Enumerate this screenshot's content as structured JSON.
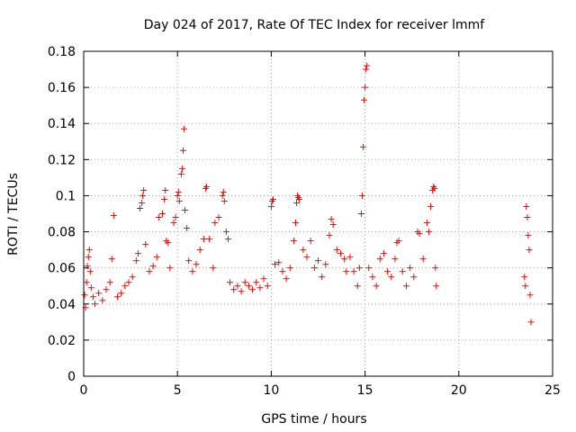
{
  "chart_data": {
    "type": "scatter",
    "title": "Day 024 of 2017, Rate Of TEC Index for receiver lmmf",
    "xlabel": "GPS time / hours",
    "ylabel": "ROTI / TECUs",
    "xlim": [
      0,
      25
    ],
    "ylim": [
      0,
      0.18
    ],
    "xticks": [
      "0",
      "5",
      "10",
      "15",
      "20",
      "25"
    ],
    "yticks": [
      "0",
      "0.02",
      "0.04",
      "0.06",
      "0.08",
      "0.1",
      "0.12",
      "0.14",
      "0.16",
      "0.18"
    ],
    "grid": true,
    "marker": "+",
    "marker_color": "#ff0000",
    "series": [
      {
        "points": [
          [
            0.05,
            0.045
          ],
          [
            0.1,
            0.038
          ],
          [
            0.15,
            0.052
          ],
          [
            0.2,
            0.061
          ],
          [
            0.25,
            0.066
          ],
          [
            0.3,
            0.07
          ],
          [
            0.35,
            0.058
          ],
          [
            0.4,
            0.049
          ],
          [
            0.5,
            0.044
          ],
          [
            0.6,
            0.04
          ],
          [
            0.8,
            0.046
          ],
          [
            1.0,
            0.042
          ],
          [
            1.2,
            0.048
          ],
          [
            1.4,
            0.052
          ],
          [
            1.5,
            0.065
          ],
          [
            1.6,
            0.089
          ],
          [
            1.8,
            0.044
          ],
          [
            2.0,
            0.046
          ],
          [
            2.2,
            0.05
          ],
          [
            2.4,
            0.052
          ],
          [
            2.6,
            0.055
          ],
          [
            2.8,
            0.064
          ],
          [
            2.9,
            0.068
          ],
          [
            3.0,
            0.093
          ],
          [
            3.1,
            0.096
          ],
          [
            3.15,
            0.1
          ],
          [
            3.2,
            0.103
          ],
          [
            3.3,
            0.073
          ],
          [
            3.5,
            0.058
          ],
          [
            3.7,
            0.061
          ],
          [
            3.9,
            0.066
          ],
          [
            4.0,
            0.088
          ],
          [
            4.2,
            0.09
          ],
          [
            4.3,
            0.098
          ],
          [
            4.35,
            0.103
          ],
          [
            4.4,
            0.075
          ],
          [
            4.5,
            0.074
          ],
          [
            4.6,
            0.06
          ],
          [
            4.8,
            0.085
          ],
          [
            4.9,
            0.088
          ],
          [
            5.0,
            0.1
          ],
          [
            5.05,
            0.102
          ],
          [
            5.1,
            0.097
          ],
          [
            5.2,
            0.112
          ],
          [
            5.25,
            0.115
          ],
          [
            5.3,
            0.125
          ],
          [
            5.35,
            0.137
          ],
          [
            5.4,
            0.092
          ],
          [
            5.5,
            0.082
          ],
          [
            5.6,
            0.064
          ],
          [
            5.8,
            0.058
          ],
          [
            6.0,
            0.062
          ],
          [
            6.2,
            0.07
          ],
          [
            6.4,
            0.076
          ],
          [
            6.5,
            0.104
          ],
          [
            6.55,
            0.105
          ],
          [
            6.7,
            0.076
          ],
          [
            6.9,
            0.06
          ],
          [
            7.0,
            0.085
          ],
          [
            7.2,
            0.088
          ],
          [
            7.4,
            0.1
          ],
          [
            7.45,
            0.102
          ],
          [
            7.5,
            0.097
          ],
          [
            7.6,
            0.08
          ],
          [
            7.7,
            0.076
          ],
          [
            7.8,
            0.052
          ],
          [
            8.0,
            0.048
          ],
          [
            8.2,
            0.05
          ],
          [
            8.4,
            0.047
          ],
          [
            8.6,
            0.052
          ],
          [
            8.8,
            0.05
          ],
          [
            9.0,
            0.048
          ],
          [
            9.2,
            0.052
          ],
          [
            9.4,
            0.049
          ],
          [
            9.6,
            0.054
          ],
          [
            9.8,
            0.05
          ],
          [
            10.0,
            0.094
          ],
          [
            10.05,
            0.097
          ],
          [
            10.1,
            0.098
          ],
          [
            10.2,
            0.062
          ],
          [
            10.4,
            0.063
          ],
          [
            10.6,
            0.058
          ],
          [
            10.8,
            0.054
          ],
          [
            11.0,
            0.06
          ],
          [
            11.2,
            0.075
          ],
          [
            11.3,
            0.085
          ],
          [
            11.35,
            0.096
          ],
          [
            11.4,
            0.1
          ],
          [
            11.45,
            0.099
          ],
          [
            11.5,
            0.098
          ],
          [
            11.7,
            0.07
          ],
          [
            11.9,
            0.066
          ],
          [
            12.1,
            0.075
          ],
          [
            12.3,
            0.06
          ],
          [
            12.5,
            0.064
          ],
          [
            12.7,
            0.055
          ],
          [
            12.9,
            0.062
          ],
          [
            13.1,
            0.078
          ],
          [
            13.2,
            0.087
          ],
          [
            13.3,
            0.084
          ],
          [
            13.5,
            0.07
          ],
          [
            13.7,
            0.068
          ],
          [
            13.9,
            0.065
          ],
          [
            14.0,
            0.058
          ],
          [
            14.2,
            0.066
          ],
          [
            14.4,
            0.058
          ],
          [
            14.6,
            0.05
          ],
          [
            14.7,
            0.06
          ],
          [
            14.8,
            0.09
          ],
          [
            14.85,
            0.1
          ],
          [
            14.9,
            0.127
          ],
          [
            14.95,
            0.153
          ],
          [
            15.0,
            0.16
          ],
          [
            15.05,
            0.17
          ],
          [
            15.1,
            0.172
          ],
          [
            15.2,
            0.06
          ],
          [
            15.4,
            0.055
          ],
          [
            15.6,
            0.05
          ],
          [
            15.8,
            0.065
          ],
          [
            16.0,
            0.068
          ],
          [
            16.2,
            0.058
          ],
          [
            16.4,
            0.055
          ],
          [
            16.6,
            0.065
          ],
          [
            16.7,
            0.074
          ],
          [
            16.8,
            0.075
          ],
          [
            17.0,
            0.058
          ],
          [
            17.2,
            0.05
          ],
          [
            17.4,
            0.06
          ],
          [
            17.6,
            0.055
          ],
          [
            17.8,
            0.08
          ],
          [
            17.9,
            0.079
          ],
          [
            18.1,
            0.065
          ],
          [
            18.3,
            0.085
          ],
          [
            18.4,
            0.08
          ],
          [
            18.5,
            0.094
          ],
          [
            18.6,
            0.103
          ],
          [
            18.65,
            0.105
          ],
          [
            18.7,
            0.104
          ],
          [
            18.75,
            0.06
          ],
          [
            18.8,
            0.05
          ],
          [
            23.5,
            0.055
          ],
          [
            23.55,
            0.05
          ],
          [
            23.6,
            0.094
          ],
          [
            23.65,
            0.088
          ],
          [
            23.7,
            0.078
          ],
          [
            23.75,
            0.07
          ],
          [
            23.8,
            0.045
          ],
          [
            23.85,
            0.03
          ]
        ]
      }
    ]
  }
}
